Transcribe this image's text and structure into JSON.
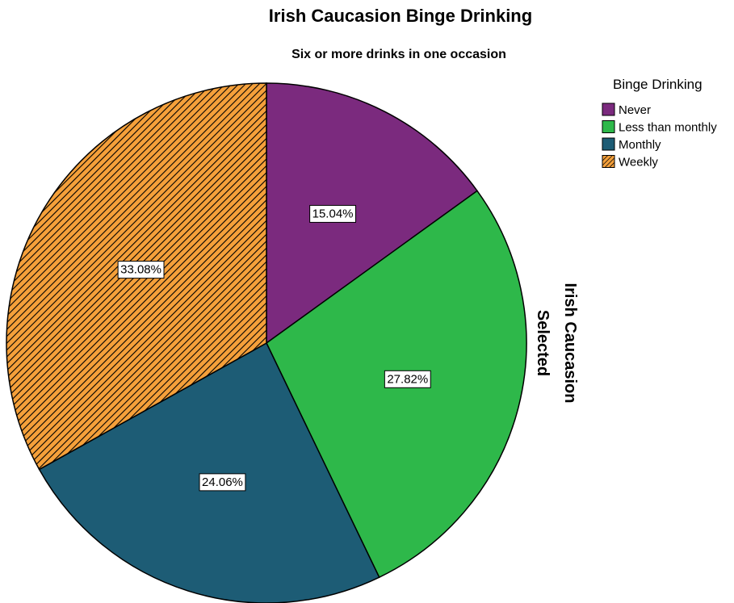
{
  "chart_data": {
    "type": "pie",
    "title": "Irish Caucasion Binge Drinking",
    "subtitle": "Six or more drinks in one occasion",
    "side_label_line1": "Irish Caucasion",
    "side_label_line2": "Selected",
    "legend_title": "Binge Drinking",
    "legend_placement": "top-right",
    "start_angle_deg": 0,
    "direction": "clockwise",
    "slices": [
      {
        "label": "Never",
        "value": 15.04,
        "display": "15.04%",
        "color": "#7b2a7e",
        "pattern": "solid"
      },
      {
        "label": "Less than monthly",
        "value": 27.82,
        "display": "27.82%",
        "color": "#2eb84a",
        "pattern": "solid"
      },
      {
        "label": "Monthly",
        "value": 24.06,
        "display": "24.06%",
        "color": "#1d5c75",
        "pattern": "solid"
      },
      {
        "label": "Weekly",
        "value": 33.08,
        "display": "33.08%",
        "color": "#f5a03a",
        "pattern": "diagonal-hatch"
      }
    ]
  }
}
